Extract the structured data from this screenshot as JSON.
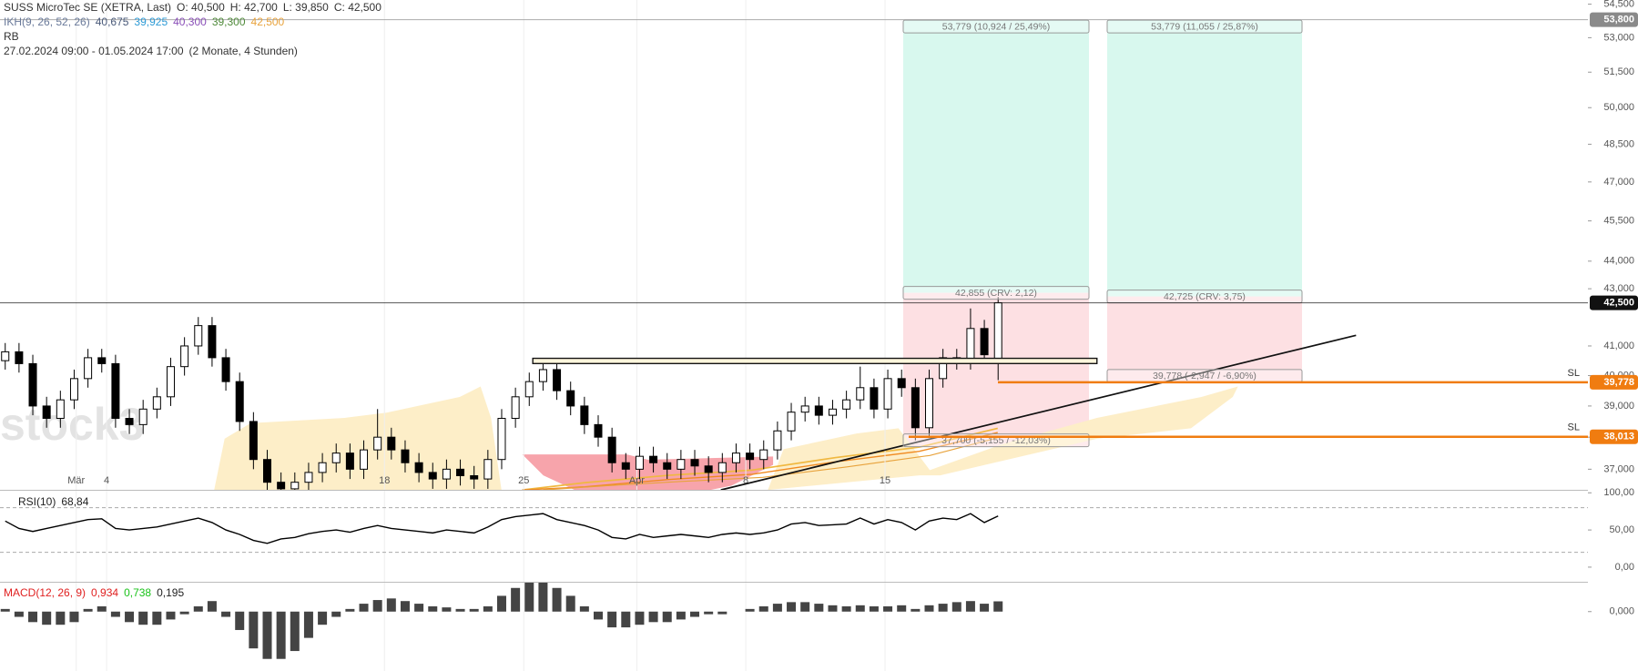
{
  "header": {
    "title": "SUSS MicroTec SE (XETRA, Last)",
    "ohlc": [
      "O: 40,500",
      "H: 42,700",
      "L: 39,850",
      "C: 42,500"
    ],
    "indicator": "IKH(9, 26, 52, 26)",
    "indicator_values": [
      "40,675",
      "39,925",
      "40,300",
      "39,300",
      "42,500"
    ],
    "indicator_colors": [
      "#4a5a7a",
      "#2e9bd6",
      "#8a4fb8",
      "#4f8a3a",
      "#e8a33d"
    ],
    "rb": "RB",
    "range": "27.02.2024 09:00 - 01.05.2024 17:00",
    "duration": "(2 Monate, 4 Stunden)",
    "watermark": "stock3"
  },
  "chart_data": [
    {
      "type": "candlestick",
      "log": true,
      "up_color": "#ffffff",
      "down_color": "#000000",
      "open": [
        40.5,
        40.8,
        40.4,
        39.0,
        38.6,
        39.2,
        39.9,
        40.6,
        40.4,
        38.6,
        38.4,
        38.9,
        39.3,
        40.3,
        41.0,
        41.7,
        40.6,
        39.8,
        38.5,
        37.3,
        36.6,
        36.4,
        36.6,
        36.9,
        37.2,
        37.5,
        37.0,
        37.6,
        38.0,
        37.6,
        37.2,
        36.9,
        36.7,
        37.0,
        36.8,
        36.7,
        37.3,
        38.6,
        39.3,
        39.8,
        40.2,
        39.5,
        39.0,
        38.4,
        38.0,
        37.2,
        37.0,
        37.4,
        37.2,
        37.0,
        37.3,
        37.1,
        36.9,
        37.2,
        37.5,
        37.3,
        37.6,
        38.2,
        38.8,
        39.0,
        38.7,
        38.9,
        39.2,
        39.6,
        38.9,
        39.9,
        39.6,
        38.3,
        39.9,
        40.6,
        40.5,
        41.6,
        40.5
      ],
      "high": [
        41.1,
        41.1,
        40.7,
        39.3,
        39.5,
        40.2,
        40.9,
        40.9,
        40.7,
        38.9,
        39.2,
        39.6,
        40.6,
        41.3,
        42.0,
        42.0,
        40.9,
        40.1,
        38.8,
        37.6,
        36.9,
        36.9,
        37.2,
        37.5,
        37.8,
        37.8,
        37.9,
        38.9,
        38.3,
        37.9,
        37.5,
        37.2,
        37.3,
        37.3,
        37.1,
        37.6,
        38.9,
        39.6,
        40.1,
        40.5,
        40.5,
        39.8,
        39.3,
        38.7,
        38.3,
        37.5,
        37.7,
        37.7,
        37.5,
        37.6,
        37.6,
        37.4,
        37.5,
        37.8,
        37.8,
        37.9,
        38.5,
        39.1,
        39.3,
        39.3,
        39.2,
        39.5,
        40.3,
        39.9,
        40.2,
        40.2,
        39.9,
        40.2,
        40.9,
        40.9,
        42.3,
        41.9,
        42.7
      ],
      "low": [
        40.2,
        40.1,
        38.7,
        38.3,
        38.3,
        38.9,
        39.6,
        40.1,
        38.3,
        38.1,
        38.1,
        38.6,
        39.0,
        40.0,
        40.7,
        40.3,
        39.5,
        38.2,
        37.0,
        36.3,
        36.1,
        36.1,
        36.3,
        36.6,
        36.9,
        36.7,
        36.7,
        37.3,
        37.3,
        36.9,
        36.6,
        36.4,
        36.4,
        36.5,
        36.4,
        36.4,
        37.0,
        38.3,
        39.0,
        39.5,
        39.2,
        38.7,
        38.1,
        37.7,
        36.9,
        36.7,
        36.7,
        36.9,
        36.7,
        36.7,
        36.8,
        36.6,
        36.6,
        36.9,
        37.0,
        37.0,
        37.3,
        37.9,
        38.5,
        38.4,
        38.4,
        38.6,
        38.9,
        38.6,
        38.6,
        39.3,
        37.9,
        38.0,
        39.6,
        40.2,
        40.2,
        40.4,
        39.85
      ],
      "close": [
        40.8,
        40.4,
        39.0,
        38.6,
        39.2,
        39.9,
        40.6,
        40.4,
        38.6,
        38.4,
        38.9,
        39.3,
        40.3,
        41.0,
        41.7,
        40.6,
        39.8,
        38.5,
        37.3,
        36.6,
        36.4,
        36.6,
        36.9,
        37.2,
        37.5,
        37.0,
        37.6,
        38.0,
        37.6,
        37.2,
        36.9,
        36.7,
        37.0,
        36.8,
        36.7,
        37.3,
        38.6,
        39.3,
        39.8,
        40.2,
        39.5,
        39.0,
        38.4,
        38.0,
        37.2,
        37.0,
        37.4,
        37.2,
        37.0,
        37.3,
        37.1,
        36.9,
        37.2,
        37.5,
        37.3,
        37.6,
        38.2,
        38.8,
        39.0,
        38.7,
        38.9,
        39.2,
        39.6,
        38.9,
        39.9,
        39.6,
        38.3,
        39.9,
        40.6,
        40.5,
        41.6,
        40.7,
        42.5
      ],
      "ylim": [
        36.37,
        54.69
      ],
      "yticks": [
        {
          "value": 54.5,
          "label": "54,500"
        },
        {
          "value": 53,
          "label": "53,000"
        },
        {
          "value": 51.5,
          "label": "51,500"
        },
        {
          "value": 50,
          "label": "50,000"
        },
        {
          "value": 48.5,
          "label": "48,500"
        },
        {
          "value": 47,
          "label": "47,000"
        },
        {
          "value": 45.5,
          "label": "45,500"
        },
        {
          "value": 44,
          "label": "44,000"
        },
        {
          "value": 43,
          "label": "43,000"
        },
        {
          "value": 41,
          "label": "41,000"
        },
        {
          "value": 40,
          "label": "40,000"
        },
        {
          "value": 39,
          "label": "39,000"
        },
        {
          "value": 38,
          "label": "38,000"
        },
        {
          "value": 37,
          "label": "37,000"
        }
      ],
      "xticks": [
        {
          "value": 5.15,
          "label": "Mär"
        },
        {
          "value": 7.35,
          "label": "4"
        },
        {
          "value": 27.5,
          "label": "18"
        },
        {
          "value": 37.6,
          "label": "25"
        },
        {
          "value": 45.8,
          "label": "Apr"
        },
        {
          "value": 53.7,
          "label": "8"
        },
        {
          "value": 63.8,
          "label": "15"
        }
      ],
      "levels": [
        {
          "value": 53.8,
          "label": "53,800",
          "color": "#8a8a8a"
        },
        {
          "value": 42.5,
          "label": "42,500",
          "color": "#111111"
        },
        {
          "value": 39.778,
          "label": "39,778",
          "name": "SL",
          "color": "#f07c10"
        },
        {
          "value": 38.013,
          "label": "38,013",
          "name": "SL",
          "color": "#f07c10"
        }
      ],
      "positions": [
        {
          "target": 53.779,
          "entry": 42.855,
          "stop": 37.7,
          "labels": [
            "53,779 (10,924 / 25,49%)",
            "42,855 (CRV: 2,12)",
            "37,700 (-5,155 / -12,03%)"
          ]
        },
        {
          "target": 53.779,
          "entry": 42.725,
          "stop": 39.778,
          "labels": [
            "53,779 (11,055 / 25,87%)",
            "42,725 (CRV: 3,75)",
            "39,778 (-2,947 / -6,90%)"
          ]
        }
      ]
    },
    {
      "type": "line",
      "name": "RSI(10)",
      "legend_value": {
        "value": 68.84,
        "label": "68,84"
      },
      "color": "#000000",
      "values": [
        62,
        52,
        48,
        52,
        56,
        60,
        64,
        65,
        52,
        50,
        52,
        54,
        58,
        62,
        66,
        60,
        50,
        44,
        36,
        32,
        38,
        40,
        45,
        48,
        50,
        47,
        52,
        56,
        52,
        50,
        48,
        46,
        50,
        48,
        46,
        54,
        64,
        68,
        70,
        72,
        64,
        60,
        56,
        50,
        40,
        38,
        44,
        40,
        42,
        44,
        42,
        40,
        44,
        46,
        44,
        46,
        50,
        58,
        60,
        56,
        57,
        58,
        66,
        58,
        64,
        60,
        50,
        62,
        66,
        64,
        72,
        60,
        68.84
      ],
      "ylim": [
        -19.7,
        102.8
      ],
      "yticks": [
        {
          "value": 100,
          "label": "100,00"
        },
        {
          "value": 50,
          "label": "50,00"
        },
        {
          "value": 0,
          "label": "0,00"
        }
      ],
      "bands": [
        80,
        20
      ]
    },
    {
      "type": "bar",
      "name": "MACD(12, 26, 9)",
      "color": "#444444",
      "legend_values": [
        {
          "value": 0.934,
          "label": "0,934",
          "color": "#e02020"
        },
        {
          "value": 0.738,
          "label": "0,738",
          "color": "#19c219"
        },
        {
          "value": 0.195,
          "label": "0,195",
          "color": "#222222"
        }
      ],
      "values": [
        0.05,
        -0.1,
        -0.2,
        -0.25,
        -0.25,
        -0.2,
        0.05,
        0.1,
        -0.1,
        -0.2,
        -0.25,
        -0.25,
        -0.15,
        -0.05,
        0.1,
        0.2,
        -0.1,
        -0.35,
        -0.7,
        -0.9,
        -0.9,
        -0.75,
        -0.5,
        -0.25,
        -0.1,
        0.05,
        0.15,
        0.22,
        0.25,
        0.2,
        0.15,
        0.1,
        0.08,
        0.05,
        0.05,
        0.1,
        0.3,
        0.45,
        0.55,
        0.55,
        0.45,
        0.3,
        0.1,
        -0.15,
        -0.3,
        -0.3,
        -0.25,
        -0.2,
        -0.2,
        -0.15,
        -0.1,
        -0.05,
        -0.05,
        0.0,
        0.05,
        0.1,
        0.15,
        0.18,
        0.18,
        0.15,
        0.12,
        0.1,
        0.12,
        0.1,
        0.1,
        0.12,
        0.05,
        0.12,
        0.15,
        0.18,
        0.2,
        0.15,
        0.195
      ],
      "ylim": [
        -1.13,
        0.55
      ],
      "yticks": [
        {
          "value": 0,
          "label": "0,000"
        }
      ]
    }
  ]
}
